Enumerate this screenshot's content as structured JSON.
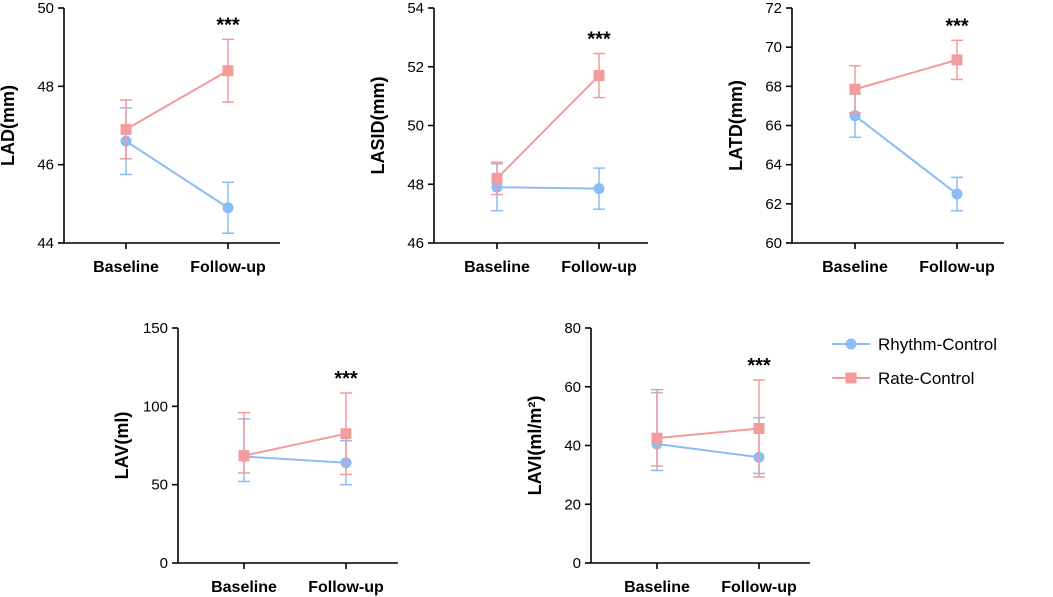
{
  "colors": {
    "rhythm": "#8cbcf5",
    "rate": "#f29c9c",
    "axis": "#000000"
  },
  "legend": [
    {
      "name": "Rhythm-Control",
      "marker": "circle"
    },
    {
      "name": "Rate-Control",
      "marker": "square"
    }
  ],
  "chart_data": [
    {
      "type": "line",
      "ylabel": "LAD(mm)",
      "ylim": [
        44,
        50
      ],
      "yticks": [
        44,
        46,
        48,
        50
      ],
      "categories": [
        "Baseline",
        "Follow-up"
      ],
      "significance": [
        "",
        "***"
      ],
      "series": [
        {
          "name": "Rhythm-Control",
          "values": [
            46.6,
            44.9
          ],
          "err_lo": [
            0.85,
            0.65
          ],
          "err_hi": [
            0.85,
            0.65
          ]
        },
        {
          "name": "Rate-Control",
          "values": [
            46.9,
            48.4
          ],
          "err_lo": [
            0.75,
            0.8
          ],
          "err_hi": [
            0.75,
            0.8
          ]
        }
      ]
    },
    {
      "type": "line",
      "ylabel": "LASID(mm)",
      "ylim": [
        46,
        54
      ],
      "yticks": [
        46,
        48,
        50,
        52,
        54
      ],
      "categories": [
        "Baseline",
        "Follow-up"
      ],
      "significance": [
        "",
        "***"
      ],
      "series": [
        {
          "name": "Rhythm-Control",
          "values": [
            47.9,
            47.85
          ],
          "err_lo": [
            0.8,
            0.7
          ],
          "err_hi": [
            0.8,
            0.7
          ]
        },
        {
          "name": "Rate-Control",
          "values": [
            48.2,
            51.7
          ],
          "err_lo": [
            0.55,
            0.75
          ],
          "err_hi": [
            0.55,
            0.75
          ]
        }
      ]
    },
    {
      "type": "line",
      "ylabel": "LATD(mm)",
      "ylim": [
        60,
        72
      ],
      "yticks": [
        60,
        62,
        64,
        66,
        68,
        70,
        72
      ],
      "categories": [
        "Baseline",
        "Follow-up"
      ],
      "significance": [
        "",
        "***"
      ],
      "series": [
        {
          "name": "Rhythm-Control",
          "values": [
            66.5,
            62.5
          ],
          "err_lo": [
            1.1,
            0.85
          ],
          "err_hi": [
            1.1,
            0.85
          ]
        },
        {
          "name": "Rate-Control",
          "values": [
            67.85,
            69.35
          ],
          "err_lo": [
            1.2,
            1.0
          ],
          "err_hi": [
            1.2,
            1.0
          ]
        }
      ]
    },
    {
      "type": "line",
      "ylabel": "LAV(ml)",
      "ylim": [
        0,
        150
      ],
      "yticks": [
        0,
        50,
        100,
        150
      ],
      "categories": [
        "Baseline",
        "Follow-up"
      ],
      "significance": [
        "",
        "***"
      ],
      "series": [
        {
          "name": "Rhythm-Control",
          "values": [
            68,
            64
          ],
          "err_lo": [
            16,
            14
          ],
          "err_hi": [
            24,
            14
          ]
        },
        {
          "name": "Rate-Control",
          "values": [
            68.5,
            82.5
          ],
          "err_lo": [
            11,
            26
          ],
          "err_hi": [
            27.5,
            26
          ]
        }
      ]
    },
    {
      "type": "line",
      "ylabel": "LAVI(ml/m²)",
      "ylim": [
        0,
        80
      ],
      "yticks": [
        0,
        20,
        40,
        60,
        80
      ],
      "categories": [
        "Baseline",
        "Follow-up"
      ],
      "significance": [
        "",
        "***"
      ],
      "series": [
        {
          "name": "Rhythm-Control",
          "values": [
            40.5,
            36
          ],
          "err_lo": [
            9,
            5.5
          ],
          "err_hi": [
            18.5,
            13.5
          ]
        },
        {
          "name": "Rate-Control",
          "values": [
            42.5,
            45.8
          ],
          "err_lo": [
            9.5,
            16.5
          ],
          "err_hi": [
            15.5,
            16.5
          ]
        }
      ]
    }
  ]
}
